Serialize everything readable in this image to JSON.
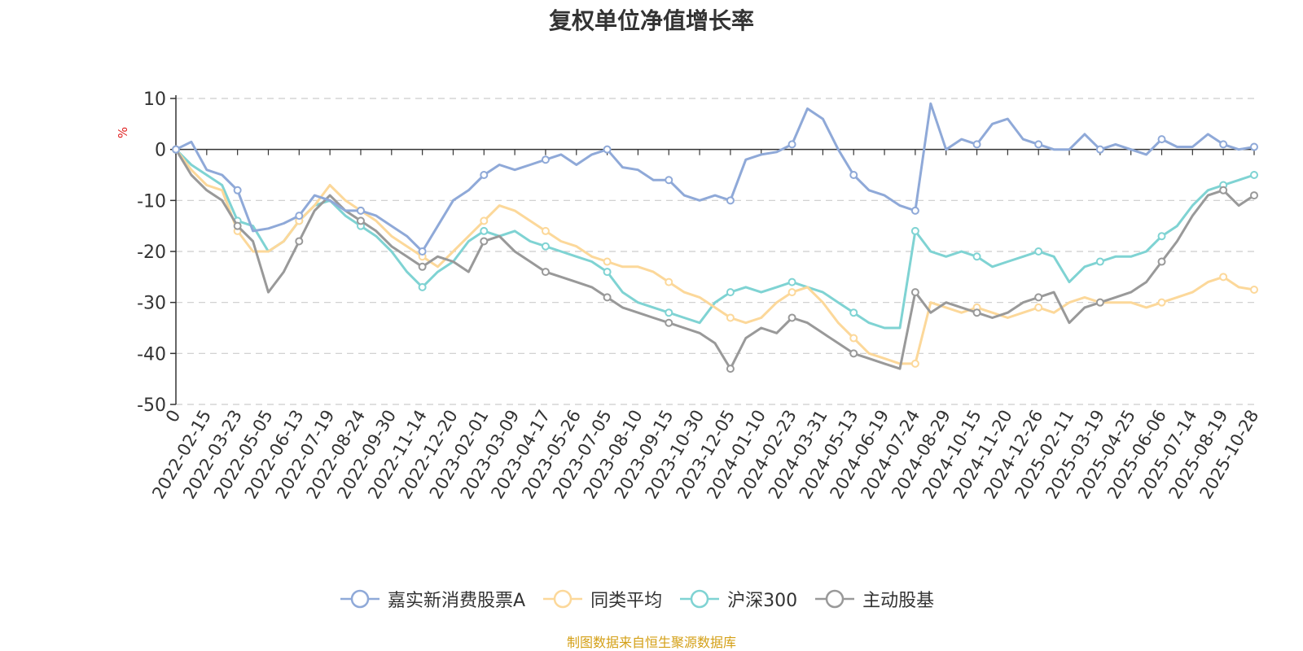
{
  "title": "复权单位净值增长率",
  "footer": "制图数据来自恒生聚源数据库",
  "chart_data": {
    "type": "line",
    "title": "复权单位净值增长率",
    "ylabel": "%",
    "xlabel": "",
    "ylim": [
      -50,
      10
    ],
    "yticks": [
      10,
      0,
      -10,
      -20,
      -30,
      -40,
      -50
    ],
    "xtick_labels": [
      "0",
      "2022-02-15",
      "2022-03-23",
      "2022-05-05",
      "2022-06-13",
      "2022-07-19",
      "2022-08-24",
      "2022-09-30",
      "2022-11-14",
      "2022-12-20",
      "2023-02-01",
      "2023-03-09",
      "2023-04-17",
      "2023-05-26",
      "2023-07-05",
      "2023-08-10",
      "2023-09-15",
      "2023-10-30",
      "2023-12-05",
      "2024-01-10",
      "2024-02-23",
      "2024-03-31",
      "2024-05-13",
      "2024-06-19",
      "2024-07-24",
      "2024-08-29",
      "2024-10-15",
      "2024-11-20",
      "2024-12-26",
      "2025-02-11",
      "2025-03-19",
      "2025-04-25",
      "2025-06-06",
      "2025-07-14",
      "2025-08-19",
      "2025-10-28"
    ],
    "grid": "horizontal-dashed",
    "legend_position": "bottom-center",
    "series": [
      {
        "name": "嘉实新消费股票A",
        "color": "#8fa9d8",
        "values": [
          0,
          1.5,
          -4,
          -5,
          -8,
          -16,
          -15.5,
          -14.5,
          -13,
          -9,
          -10,
          -12,
          -12,
          -13,
          -15,
          -17,
          -20,
          -15,
          -10,
          -8,
          -5,
          -3,
          -4,
          -3,
          -2,
          -1,
          -3,
          -1,
          0,
          -3.5,
          -4,
          -6,
          -6,
          -9,
          -10,
          -9,
          -10,
          -2,
          -1,
          -0.5,
          1,
          8,
          6,
          0,
          -5,
          -8,
          -9,
          -11,
          -12,
          9,
          0,
          2,
          1,
          5,
          6,
          2,
          1,
          0,
          0,
          3,
          0,
          1,
          0,
          -1,
          2,
          0.5,
          0.5,
          3,
          1,
          0,
          0.5
        ]
      },
      {
        "name": "同类平均",
        "color": "#fcd89a",
        "values": [
          0,
          -4,
          -7,
          -8,
          -16,
          -20,
          -20,
          -18,
          -14,
          -11,
          -7,
          -10,
          -12,
          -14,
          -17,
          -19,
          -21,
          -23,
          -20,
          -17,
          -14,
          -11,
          -12,
          -14,
          -16,
          -18,
          -19,
          -21,
          -22,
          -23,
          -23,
          -24,
          -26,
          -28,
          -29,
          -31,
          -33,
          -34,
          -33,
          -30,
          -28,
          -27,
          -30,
          -34,
          -37,
          -40,
          -41,
          -42,
          -42,
          -30,
          -31,
          -32,
          -31,
          -32,
          -33,
          -32,
          -31,
          -32,
          -30,
          -29,
          -30,
          -30,
          -30,
          -31,
          -30,
          -29,
          -28,
          -26,
          -25,
          -27,
          -27.5
        ]
      },
      {
        "name": "沪深300",
        "color": "#7fd3d3",
        "values": [
          0,
          -3,
          -5,
          -7,
          -14,
          -15,
          -20,
          -18,
          -14,
          -11,
          -10,
          -13,
          -15,
          -17,
          -20,
          -24,
          -27,
          -24,
          -22,
          -18,
          -16,
          -17,
          -16,
          -18,
          -19,
          -20,
          -21,
          -22,
          -24,
          -28,
          -30,
          -31,
          -32,
          -33,
          -34,
          -30,
          -28,
          -27,
          -28,
          -27,
          -26,
          -27,
          -28,
          -30,
          -32,
          -34,
          -35,
          -35,
          -16,
          -20,
          -21,
          -20,
          -21,
          -23,
          -22,
          -21,
          -20,
          -21,
          -26,
          -23,
          -22,
          -21,
          -21,
          -20,
          -17,
          -15,
          -11,
          -8,
          -7,
          -6,
          -5
        ]
      },
      {
        "name": "主动股基",
        "color": "#999999",
        "values": [
          0,
          -5,
          -8,
          -10,
          -15,
          -18,
          -28,
          -24,
          -18,
          -12,
          -9,
          -12,
          -14,
          -16,
          -19,
          -21,
          -23,
          -21,
          -22,
          -24,
          -18,
          -17,
          -20,
          -22,
          -24,
          -25,
          -26,
          -27,
          -29,
          -31,
          -32,
          -33,
          -34,
          -35,
          -36,
          -38,
          -43,
          -37,
          -35,
          -36,
          -33,
          -34,
          -36,
          -38,
          -40,
          -41,
          -42,
          -43,
          -28,
          -32,
          -30,
          -31,
          -32,
          -33,
          -32,
          -30,
          -29,
          -28,
          -34,
          -31,
          -30,
          -29,
          -28,
          -26,
          -22,
          -18,
          -13,
          -9,
          -8,
          -11,
          -9
        ]
      }
    ]
  }
}
